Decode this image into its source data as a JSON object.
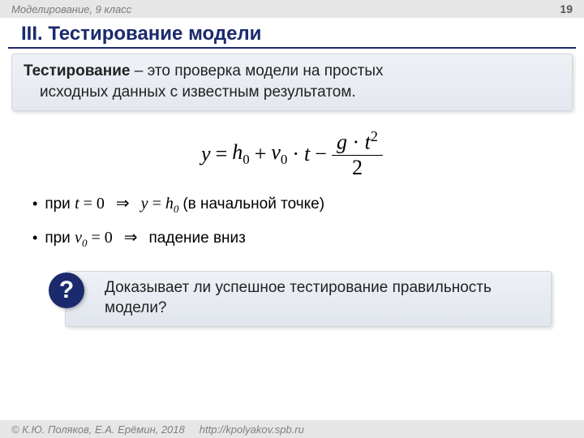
{
  "header": {
    "course": "Моделирование, 9 класс",
    "page": "19"
  },
  "title": "III. Тестирование модели",
  "definition": {
    "term": "Тестирование",
    "dash": " – ",
    "line1": "это проверка модели на простых",
    "line2": "исходных данных с известным результатом."
  },
  "formula": {
    "y": "y",
    "eq": "=",
    "h0": "h",
    "h0sub": "0",
    "plus": "+",
    "v0": "v",
    "v0sub": "0",
    "dot1": "·",
    "t": "t",
    "minus": "−",
    "g": "g",
    "dot2": "·",
    "t2": "t",
    "t2sup": "2",
    "two": "2"
  },
  "bullet1": {
    "pre": "при ",
    "var1": "t",
    "eq0": " = 0",
    "arrow": "⇒",
    "y": "y",
    "eq": " = ",
    "h": "h",
    "hsub": "0",
    "post": " (в начальной точке)"
  },
  "bullet2": {
    "pre": "при ",
    "var1": "v",
    "var1sub": "0",
    "eq0": " = 0",
    "arrow": "⇒",
    "post": " падение вниз"
  },
  "question": {
    "mark": "?",
    "text": "Доказывает ли успешное тестирование правильность модели?"
  },
  "footer": {
    "copyright": "© К.Ю. Поляков, Е.А. Ерёмин, 2018",
    "url": "http://kpolyakov.spb.ru"
  },
  "colors": {
    "accent": "#1a2a6c",
    "box_bg_top": "#eef1f6",
    "box_bg_bottom": "#e4e8ef",
    "strip_bg": "#e6e6e6"
  }
}
